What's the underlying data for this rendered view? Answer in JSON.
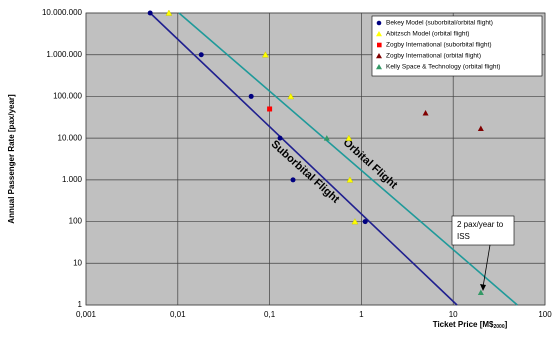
{
  "chart_data": {
    "type": "scatter",
    "xlabel": "Ticket Price [M$",
    "xlabel_sub": "2000",
    "xlabel_end": "]",
    "ylabel": "Annual Passenger Rate [pax/year]",
    "log_x": true,
    "log_y": true,
    "grid": true,
    "xlim": [
      0.001,
      100
    ],
    "ylim": [
      1,
      10000000
    ],
    "xticks": [
      {
        "value": 0.001,
        "label": "0,001"
      },
      {
        "value": 0.01,
        "label": "0,01"
      },
      {
        "value": 0.1,
        "label": "0,1"
      },
      1,
      10,
      100
    ],
    "yticks": [
      1,
      10,
      100,
      {
        "value": 1000,
        "label": "1.000"
      },
      {
        "value": 10000,
        "label": "10.000"
      },
      {
        "value": 100000,
        "label": "100.000"
      },
      {
        "value": 1000000,
        "label": "1.000.000"
      },
      {
        "value": 10000000,
        "label": "10.000.000"
      }
    ],
    "legend": "top-right",
    "series": [
      {
        "name": "Bekey Model (suborbital/orbital flight)",
        "color": "#000080",
        "marker": "circle",
        "x": [
          0.005,
          0.018,
          0.063,
          0.13,
          0.18,
          1.1
        ],
        "values": [
          10000000,
          1000000,
          100000,
          10000,
          1000,
          100
        ]
      },
      {
        "name": "Abitzsch Model (orbital flight)",
        "color": "#ffff00",
        "marker": "triangle",
        "x": [
          0.008,
          0.09,
          0.17,
          0.73,
          0.75,
          0.85
        ],
        "values": [
          10000000,
          1000000,
          100000,
          10000,
          1000,
          100
        ]
      },
      {
        "name": "Zogby International (suborbital flight)",
        "color": "#ff0000",
        "marker": "square",
        "x": [
          0.1
        ],
        "values": [
          50000
        ]
      },
      {
        "name": "Zogby International (orbital flight)",
        "color": "#800000",
        "marker": "triangle",
        "x": [
          5,
          20
        ],
        "values": [
          40000,
          17000
        ]
      },
      {
        "name": "Kelly Space & Technology (orbital flight)",
        "color": "#339966",
        "marker": "triangle",
        "x": [
          0.42,
          20
        ],
        "values": [
          10000,
          2
        ]
      }
    ],
    "lines": [
      {
        "name": "Suborbital Flight",
        "color": "#1f1f8f",
        "x": [
          0.005,
          11
        ],
        "values": [
          10000000,
          1
        ]
      },
      {
        "name": "Orbital Flight",
        "color": "#1f9a9a",
        "x": [
          0.0103,
          50
        ],
        "values": [
          10000000,
          1
        ]
      }
    ],
    "annotation": "2 pax/year to ISS"
  }
}
